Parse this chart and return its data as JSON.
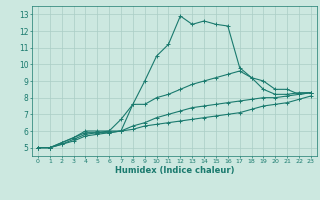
{
  "title": "",
  "xlabel": "Humidex (Indice chaleur)",
  "ylabel": "",
  "xlim": [
    -0.5,
    23.5
  ],
  "ylim": [
    4.5,
    13.5
  ],
  "xticks": [
    0,
    1,
    2,
    3,
    4,
    5,
    6,
    7,
    8,
    9,
    10,
    11,
    12,
    13,
    14,
    15,
    16,
    17,
    18,
    19,
    20,
    21,
    22,
    23
  ],
  "yticks": [
    5,
    6,
    7,
    8,
    9,
    10,
    11,
    12,
    13
  ],
  "bg_color": "#cce8e0",
  "line_color": "#1a7a6e",
  "grid_color": "#aacec6",
  "lines": [
    {
      "x": [
        0,
        1,
        2,
        3,
        4,
        5,
        6,
        7,
        8,
        9,
        10,
        11,
        12,
        13,
        14,
        15,
        16,
        17,
        18,
        19,
        20,
        21,
        22,
        23
      ],
      "y": [
        5.0,
        5.0,
        5.3,
        5.6,
        6.0,
        6.0,
        6.0,
        6.0,
        7.6,
        9.0,
        10.5,
        11.2,
        12.9,
        12.4,
        12.6,
        12.4,
        12.3,
        9.8,
        9.2,
        8.5,
        8.2,
        8.2,
        8.3,
        8.3
      ]
    },
    {
      "x": [
        0,
        1,
        2,
        3,
        4,
        5,
        6,
        7,
        8,
        9,
        10,
        11,
        12,
        13,
        14,
        15,
        16,
        17,
        18,
        19,
        20,
        21,
        22,
        23
      ],
      "y": [
        5.0,
        5.0,
        5.3,
        5.6,
        5.9,
        5.9,
        6.0,
        6.7,
        7.6,
        7.6,
        8.0,
        8.2,
        8.5,
        8.8,
        9.0,
        9.2,
        9.4,
        9.6,
        9.2,
        9.0,
        8.5,
        8.5,
        8.2,
        8.3
      ]
    },
    {
      "x": [
        0,
        1,
        2,
        3,
        4,
        5,
        6,
        7,
        8,
        9,
        10,
        11,
        12,
        13,
        14,
        15,
        16,
        17,
        18,
        19,
        20,
        21,
        22,
        23
      ],
      "y": [
        5.0,
        5.0,
        5.2,
        5.5,
        5.8,
        5.9,
        5.9,
        6.0,
        6.3,
        6.5,
        6.8,
        7.0,
        7.2,
        7.4,
        7.5,
        7.6,
        7.7,
        7.8,
        7.9,
        8.0,
        8.0,
        8.1,
        8.2,
        8.3
      ]
    },
    {
      "x": [
        0,
        1,
        2,
        3,
        4,
        5,
        6,
        7,
        8,
        9,
        10,
        11,
        12,
        13,
        14,
        15,
        16,
        17,
        18,
        19,
        20,
        21,
        22,
        23
      ],
      "y": [
        5.0,
        5.0,
        5.2,
        5.4,
        5.7,
        5.8,
        5.9,
        6.0,
        6.1,
        6.3,
        6.4,
        6.5,
        6.6,
        6.7,
        6.8,
        6.9,
        7.0,
        7.1,
        7.3,
        7.5,
        7.6,
        7.7,
        7.9,
        8.1
      ]
    }
  ]
}
